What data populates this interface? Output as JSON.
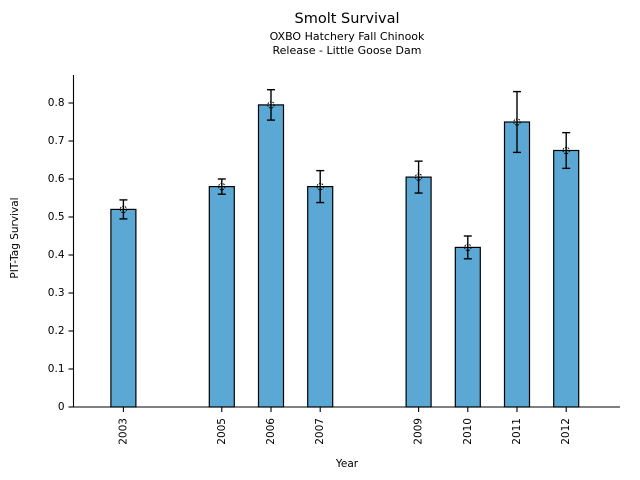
{
  "page": {
    "background_color": "#ffffff",
    "text_color": "#000000"
  },
  "chart_data": {
    "type": "bar",
    "title": "Smolt Survival",
    "subtitle_line1": "OXBO Hatchery Fall Chinook",
    "subtitle_line2": "Release - Little Goose Dam",
    "xlabel": "Year",
    "ylabel": "PIT-Tag Survival",
    "categories": [
      "2003",
      "2005",
      "2006",
      "2007",
      "2009",
      "2010",
      "2011",
      "2012"
    ],
    "years": [
      2003,
      2005,
      2006,
      2007,
      2009,
      2010,
      2011,
      2012
    ],
    "values": [
      0.52,
      0.58,
      0.795,
      0.58,
      0.605,
      0.42,
      0.75,
      0.675
    ],
    "errors": [
      0.025,
      0.02,
      0.04,
      0.042,
      0.042,
      0.03,
      0.08,
      0.047
    ],
    "yticks": [
      0,
      0.1,
      0.2,
      0.3,
      0.4,
      0.5,
      0.6,
      0.7,
      0.8
    ],
    "ytick_labels": [
      "0",
      "0.1",
      "0.2",
      "0.3",
      "0.4",
      "0.5",
      "0.6",
      "0.7",
      "0.8"
    ],
    "ylim": [
      0,
      0.875
    ],
    "x_year_range": [
      2003,
      2012
    ],
    "grid": false,
    "legend": null,
    "bar_color": "#5BA8D5",
    "bar_edge_color": "#000000",
    "errorbar_color": "#000000",
    "marker": "open-circle"
  }
}
